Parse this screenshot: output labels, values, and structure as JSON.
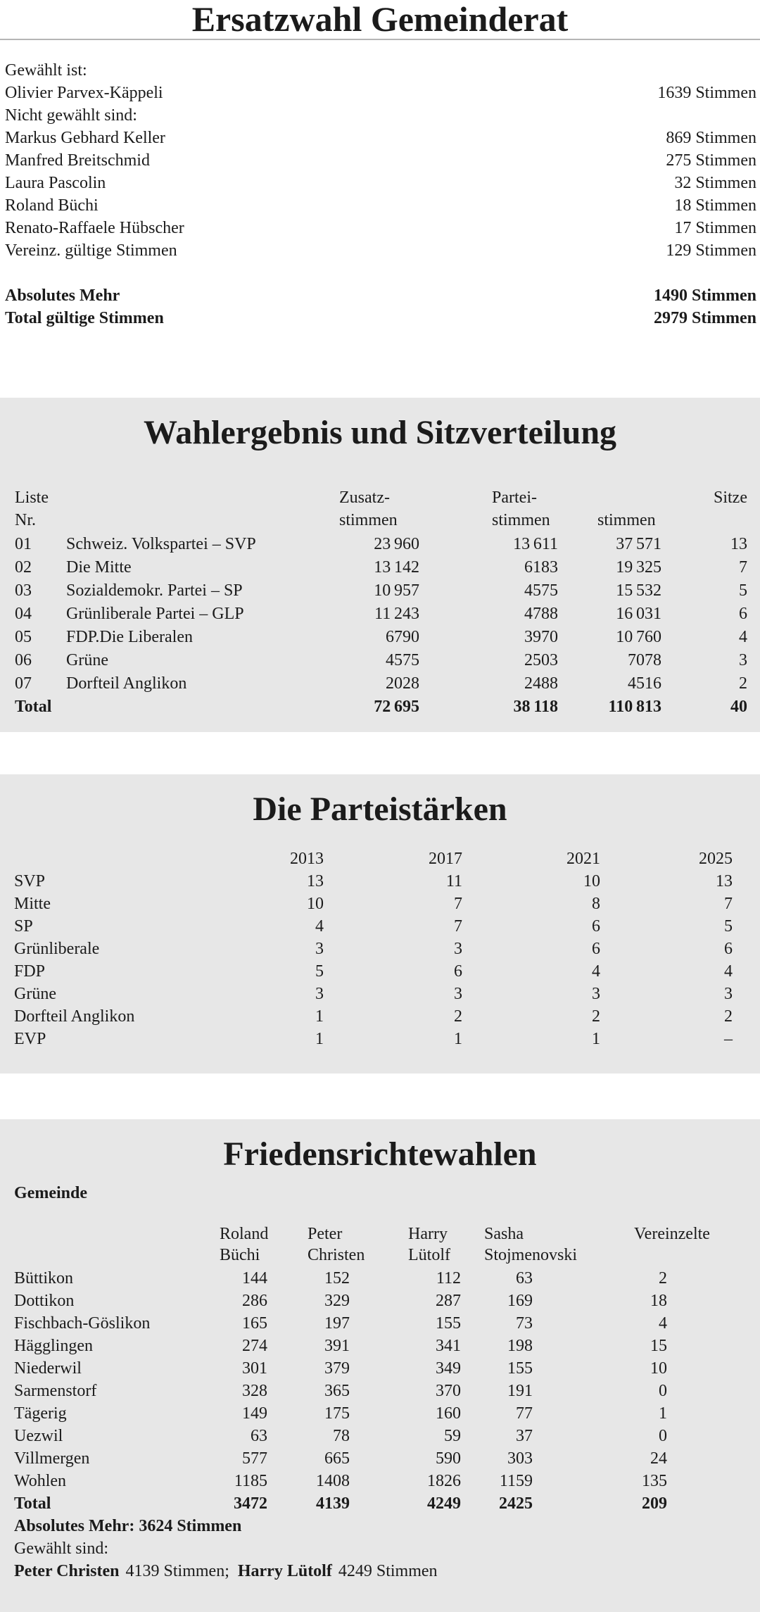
{
  "theme": {
    "page_bg": "#ffffff",
    "panel_bg": "#e7e7e7",
    "text_color": "#1b1b1b",
    "rule_color": "#b5b5b5"
  },
  "gemeinderat": {
    "title": "Ersatzwahl Gemeinderat",
    "lines": [
      {
        "text": "Gewählt ist:",
        "votes": ""
      },
      {
        "text": "Olivier Parvex-Käppeli",
        "votes": "1639 Stimmen"
      },
      {
        "text": "Nicht gewählt sind:",
        "votes": ""
      },
      {
        "text": "Markus Gebhard Keller",
        "votes": "869 Stimmen"
      },
      {
        "text": "Manfred Breitschmid",
        "votes": "275 Stimmen"
      },
      {
        "text": "Laura Pascolin",
        "votes": "32 Stimmen"
      },
      {
        "text": "Roland Büchi",
        "votes": "18 Stimmen"
      },
      {
        "text": "Renato-Raffaele Hübscher",
        "votes": "17 Stimmen"
      },
      {
        "text": "Vereinz. gültige Stimmen",
        "votes": "129 Stimmen"
      }
    ],
    "summary": [
      {
        "text": "Absolutes Mehr",
        "votes": "1490 Stimmen"
      },
      {
        "text": "Total gültige Stimmen",
        "votes": "2979 Stimmen"
      }
    ]
  },
  "sitzverteilung": {
    "title": "Wahlergebnis und Sitzverteilung",
    "headers": {
      "liste": "Liste",
      "nr": "Nr.",
      "zusatz1": "Zusatz-",
      "zusatz2": "stimmen",
      "partei1": "Partei-",
      "partei2": "stimmen",
      "stimmen3": "stimmen",
      "sitze": "Sitze"
    },
    "rows": [
      {
        "nr": "01",
        "party": "Schweiz. Volkspartei – SVP",
        "zusatz": "23 960",
        "partei": "13 611",
        "stimmen": "37 571",
        "sitze": "13"
      },
      {
        "nr": "02",
        "party": "Die Mitte",
        "zusatz": "13 142",
        "partei": "6183",
        "stimmen": "19 325",
        "sitze": "7"
      },
      {
        "nr": "03",
        "party": "Sozialdemokr. Partei – SP",
        "zusatz": "10 957",
        "partei": "4575",
        "stimmen": "15 532",
        "sitze": "5"
      },
      {
        "nr": "04",
        "party": "Grünliberale Partei – GLP",
        "zusatz": "11 243",
        "partei": "4788",
        "stimmen": "16 031",
        "sitze": "6"
      },
      {
        "nr": "05",
        "party": "FDP.Die Liberalen",
        "zusatz": "6790",
        "partei": "3970",
        "stimmen": "10 760",
        "sitze": "4"
      },
      {
        "nr": "06",
        "party": "Grüne",
        "zusatz": "4575",
        "partei": "2503",
        "stimmen": "7078",
        "sitze": "3"
      },
      {
        "nr": "07",
        "party": "Dorfteil Anglikon",
        "zusatz": "2028",
        "partei": "2488",
        "stimmen": "4516",
        "sitze": "2"
      }
    ],
    "total": {
      "label": "Total",
      "zusatz": "72 695",
      "partei": "38 118",
      "stimmen": "110 813",
      "sitze": "40"
    }
  },
  "parteistaerken": {
    "title": "Die Parteistärken",
    "years": [
      "2013",
      "2017",
      "2021",
      "2025"
    ],
    "rows": [
      {
        "party": "SVP",
        "v": [
          "13",
          "11",
          "10",
          "13"
        ]
      },
      {
        "party": "Mitte",
        "v": [
          "10",
          "7",
          "8",
          "7"
        ]
      },
      {
        "party": "SP",
        "v": [
          "4",
          "7",
          "6",
          "5"
        ]
      },
      {
        "party": "Grünliberale",
        "v": [
          "3",
          "3",
          "6",
          "6"
        ]
      },
      {
        "party": "FDP",
        "v": [
          "5",
          "6",
          "4",
          "4"
        ]
      },
      {
        "party": "Grüne",
        "v": [
          "3",
          "3",
          "3",
          "3"
        ]
      },
      {
        "party": "Dorfteil Anglikon",
        "v": [
          "1",
          "2",
          "2",
          "2"
        ]
      },
      {
        "party": "EVP",
        "v": [
          "1",
          "1",
          "1",
          "–"
        ]
      }
    ]
  },
  "friedensrichter": {
    "title": "Friedensrichtewahlen",
    "gemeinde_label": "Gemeinde",
    "candidates": [
      {
        "first": "Roland",
        "last": "Büchi"
      },
      {
        "first": "Peter",
        "last": "Christen"
      },
      {
        "first": "Harry",
        "last": "Lütolf"
      },
      {
        "first": "Sasha",
        "last": "Stojmenovski"
      },
      {
        "first": "Vereinzelte",
        "last": ""
      }
    ],
    "rows": [
      {
        "gemeinde": "Büttikon",
        "v": [
          "144",
          "152",
          "112",
          "63",
          "2"
        ]
      },
      {
        "gemeinde": "Dottikon",
        "v": [
          "286",
          "329",
          "287",
          "169",
          "18"
        ]
      },
      {
        "gemeinde": "Fischbach-Göslikon",
        "v": [
          "165",
          "197",
          "155",
          "73",
          "4"
        ]
      },
      {
        "gemeinde": "Hägglingen",
        "v": [
          "274",
          "391",
          "341",
          "198",
          "15"
        ]
      },
      {
        "gemeinde": "Niederwil",
        "v": [
          "301",
          "379",
          "349",
          "155",
          "10"
        ]
      },
      {
        "gemeinde": "Sarmenstorf",
        "v": [
          "328",
          "365",
          "370",
          "191",
          "0"
        ]
      },
      {
        "gemeinde": "Tägerig",
        "v": [
          "149",
          "175",
          "160",
          "77",
          "1"
        ]
      },
      {
        "gemeinde": "Uezwil",
        "v": [
          "63",
          "78",
          "59",
          "37",
          "0"
        ]
      },
      {
        "gemeinde": "Villmergen",
        "v": [
          "577",
          "665",
          "590",
          "303",
          "24"
        ]
      },
      {
        "gemeinde": "Wohlen",
        "v": [
          "1185",
          "1408",
          "1826",
          "1159",
          "135"
        ]
      }
    ],
    "total": {
      "label": "Total",
      "v": [
        "3472",
        "4139",
        "4249",
        "2425",
        "209"
      ]
    },
    "absolutes_mehr": "Absolutes Mehr: 3624 Stimmen",
    "gewaehlt_label": "Gewählt sind:",
    "elected": [
      {
        "name": "Peter Christen",
        "votes": "4139 Stimmen;"
      },
      {
        "name": "Harry Lütolf",
        "votes": "4249 Stimmen"
      }
    ]
  }
}
